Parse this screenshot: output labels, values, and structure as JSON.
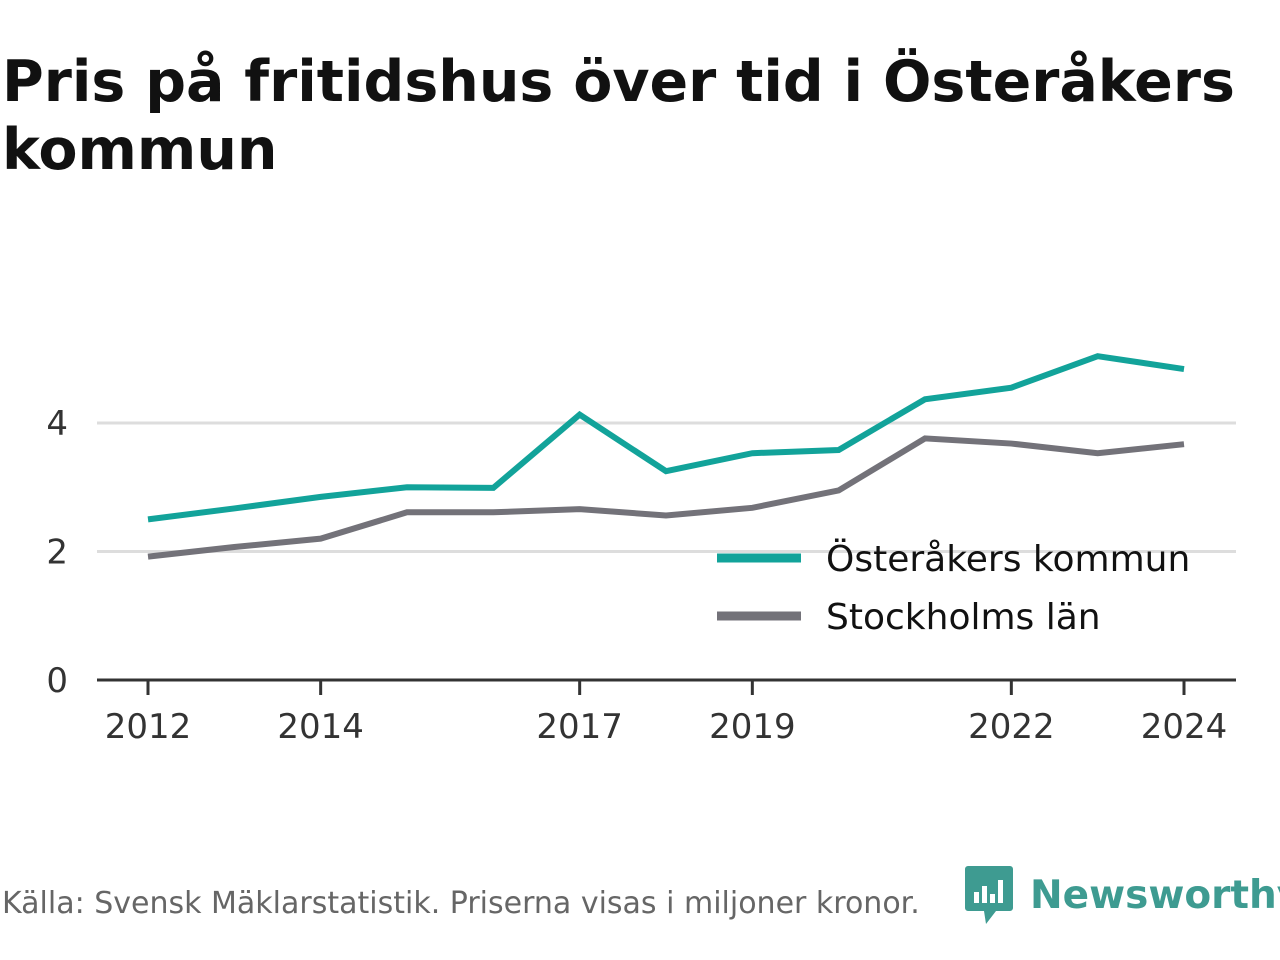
{
  "title": "Pris på fritidshus över tid i Österåkers kommun",
  "source": "Källa: Svensk Mäklarstatistik. Priserna visas i miljoner kronor.",
  "brand": {
    "name": "Newsworthy",
    "color": "#3e9b91",
    "icon": "newsworthy-chart-bubble-icon"
  },
  "chart_data": {
    "type": "line",
    "x": [
      2012,
      2013,
      2014,
      2015,
      2016,
      2017,
      2018,
      2019,
      2020,
      2021,
      2022,
      2023,
      2024
    ],
    "x_tick_labels": [
      "2012",
      "2014",
      "2017",
      "2019",
      "2022",
      "2024"
    ],
    "y_tick_labels": [
      "0",
      "2",
      "4"
    ],
    "ylim": [
      0,
      5.3
    ],
    "grid": "horizontal",
    "legend_position": "right",
    "series": [
      {
        "name": "Österåkers kommun",
        "color": "#12a39a",
        "values": [
          2.5,
          2.67,
          2.85,
          3.0,
          2.99,
          4.13,
          3.25,
          3.53,
          3.58,
          4.37,
          4.55,
          5.04,
          4.84
        ]
      },
      {
        "name": "Stockholms län",
        "color": "#737279",
        "values": [
          1.92,
          2.07,
          2.2,
          2.61,
          2.61,
          2.66,
          2.56,
          2.68,
          2.95,
          3.76,
          3.68,
          3.53,
          3.67
        ]
      }
    ]
  }
}
